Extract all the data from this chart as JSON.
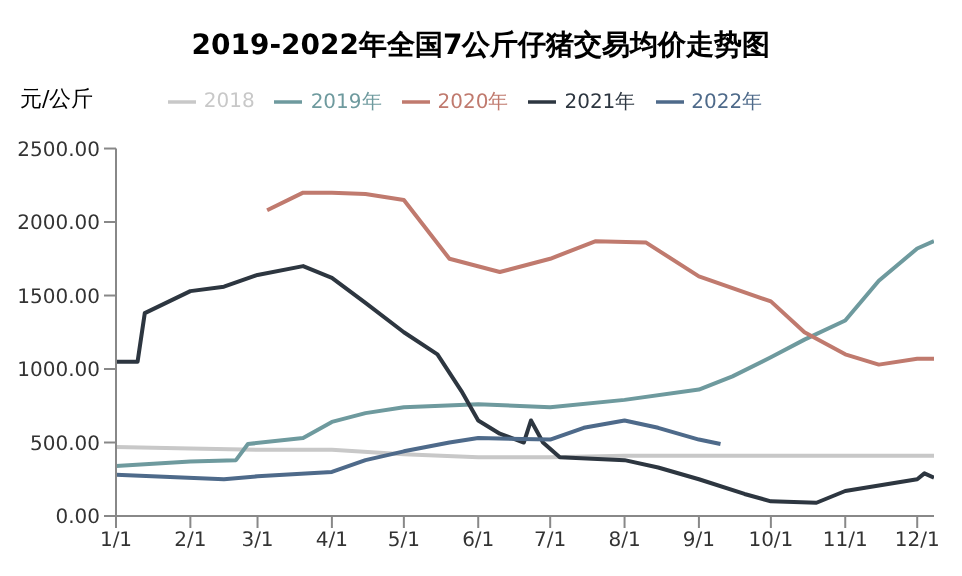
{
  "chart_data": {
    "type": "line",
    "title": "2019-2022年全国7公斤仔猪交易均价走势图",
    "ylabel": "元/公斤",
    "legend": "top",
    "grid": false,
    "marker": "none",
    "line_style": "solid",
    "xlim": [
      "--01-01",
      "--12-08"
    ],
    "xticks": [
      {
        "value": "--01-01",
        "label": "1/1"
      },
      {
        "value": "--02-01",
        "label": "2/1"
      },
      {
        "value": "--03-01",
        "label": "3/1"
      },
      {
        "value": "--04-01",
        "label": "4/1"
      },
      {
        "value": "--05-01",
        "label": "5/1"
      },
      {
        "value": "--06-01",
        "label": "6/1"
      },
      {
        "value": "--07-01",
        "label": "7/1"
      },
      {
        "value": "--08-01",
        "label": "8/1"
      },
      {
        "value": "--09-01",
        "label": "9/1"
      },
      {
        "value": "--10-01",
        "label": "10/1"
      },
      {
        "value": "--11-01",
        "label": "11/1"
      },
      {
        "value": "--12-01",
        "label": "12/1"
      }
    ],
    "ylim": [
      0,
      2500
    ],
    "yticks": [
      {
        "value": 0,
        "label": "0.00"
      },
      {
        "value": 500,
        "label": "500.00"
      },
      {
        "value": 1000,
        "label": "1000.00"
      },
      {
        "value": 1500,
        "label": "1500.00"
      },
      {
        "value": 2000,
        "label": "2000.00"
      },
      {
        "value": 2500,
        "label": "2500.00"
      }
    ],
    "series": [
      {
        "name": "2018",
        "color": "#c8c8c8",
        "x": [
          "--01-01",
          "--02-01",
          "--03-01",
          "--04-01",
          "--05-01",
          "--06-01",
          "--07-01",
          "--08-01",
          "--09-01",
          "--10-01",
          "--11-01",
          "--12-01",
          "--12-08"
        ],
        "values": [
          470,
          460,
          450,
          450,
          420,
          400,
          400,
          410,
          410,
          410,
          410,
          410,
          410
        ]
      },
      {
        "name": "2019年",
        "color": "#6e9a9e",
        "x": [
          "--01-01",
          "--02-01",
          "--02-20",
          "--02-25",
          "--03-20",
          "--04-01",
          "--04-15",
          "--05-01",
          "--06-01",
          "--07-01",
          "--08-01",
          "--09-01",
          "--09-15",
          "--10-01",
          "--10-15",
          "--11-01",
          "--11-15",
          "--12-01",
          "--12-08"
        ],
        "values": [
          340,
          370,
          380,
          490,
          530,
          640,
          700,
          740,
          760,
          740,
          790,
          860,
          950,
          1080,
          1200,
          1330,
          1600,
          1820,
          1870
        ]
      },
      {
        "name": "2020年",
        "color": "#c07a6e",
        "x": [
          "--03-05",
          "--03-20",
          "--04-01",
          "--04-15",
          "--05-01",
          "--05-20",
          "--06-10",
          "--07-01",
          "--07-20",
          "--08-10",
          "--09-01",
          "--10-01",
          "--10-15",
          "--11-01",
          "--11-15",
          "--12-01",
          "--12-08"
        ],
        "values": [
          2080,
          2200,
          2200,
          2190,
          2150,
          1750,
          1660,
          1750,
          1870,
          1860,
          1630,
          1460,
          1250,
          1100,
          1030,
          1070,
          1070
        ]
      },
      {
        "name": "2021年",
        "color": "#2d3640",
        "x": [
          "--01-01",
          "--01-10",
          "--01-13",
          "--02-01",
          "--02-15",
          "--03-01",
          "--03-20",
          "--04-01",
          "--04-15",
          "--05-01",
          "--05-15",
          "--05-25",
          "--06-01",
          "--06-10",
          "--06-20",
          "--06-23",
          "--06-28",
          "--07-05",
          "--08-01",
          "--08-15",
          "--09-01",
          "--09-20",
          "--10-01",
          "--10-20",
          "--11-01",
          "--12-01",
          "--12-04",
          "--12-08"
        ],
        "values": [
          1050,
          1050,
          1380,
          1530,
          1560,
          1640,
          1700,
          1620,
          1450,
          1250,
          1100,
          850,
          650,
          560,
          500,
          650,
          500,
          400,
          380,
          330,
          250,
          150,
          100,
          90,
          170,
          250,
          290,
          260
        ]
      },
      {
        "name": "2022年",
        "color": "#4e6a8a",
        "x": [
          "--01-01",
          "--02-15",
          "--03-01",
          "--04-01",
          "--04-15",
          "--05-01",
          "--05-20",
          "--06-01",
          "--07-01",
          "--07-15",
          "--08-01",
          "--08-15",
          "--09-01",
          "--09-10"
        ],
        "values": [
          280,
          250,
          270,
          300,
          380,
          440,
          500,
          530,
          520,
          600,
          650,
          600,
          520,
          490
        ]
      }
    ]
  }
}
